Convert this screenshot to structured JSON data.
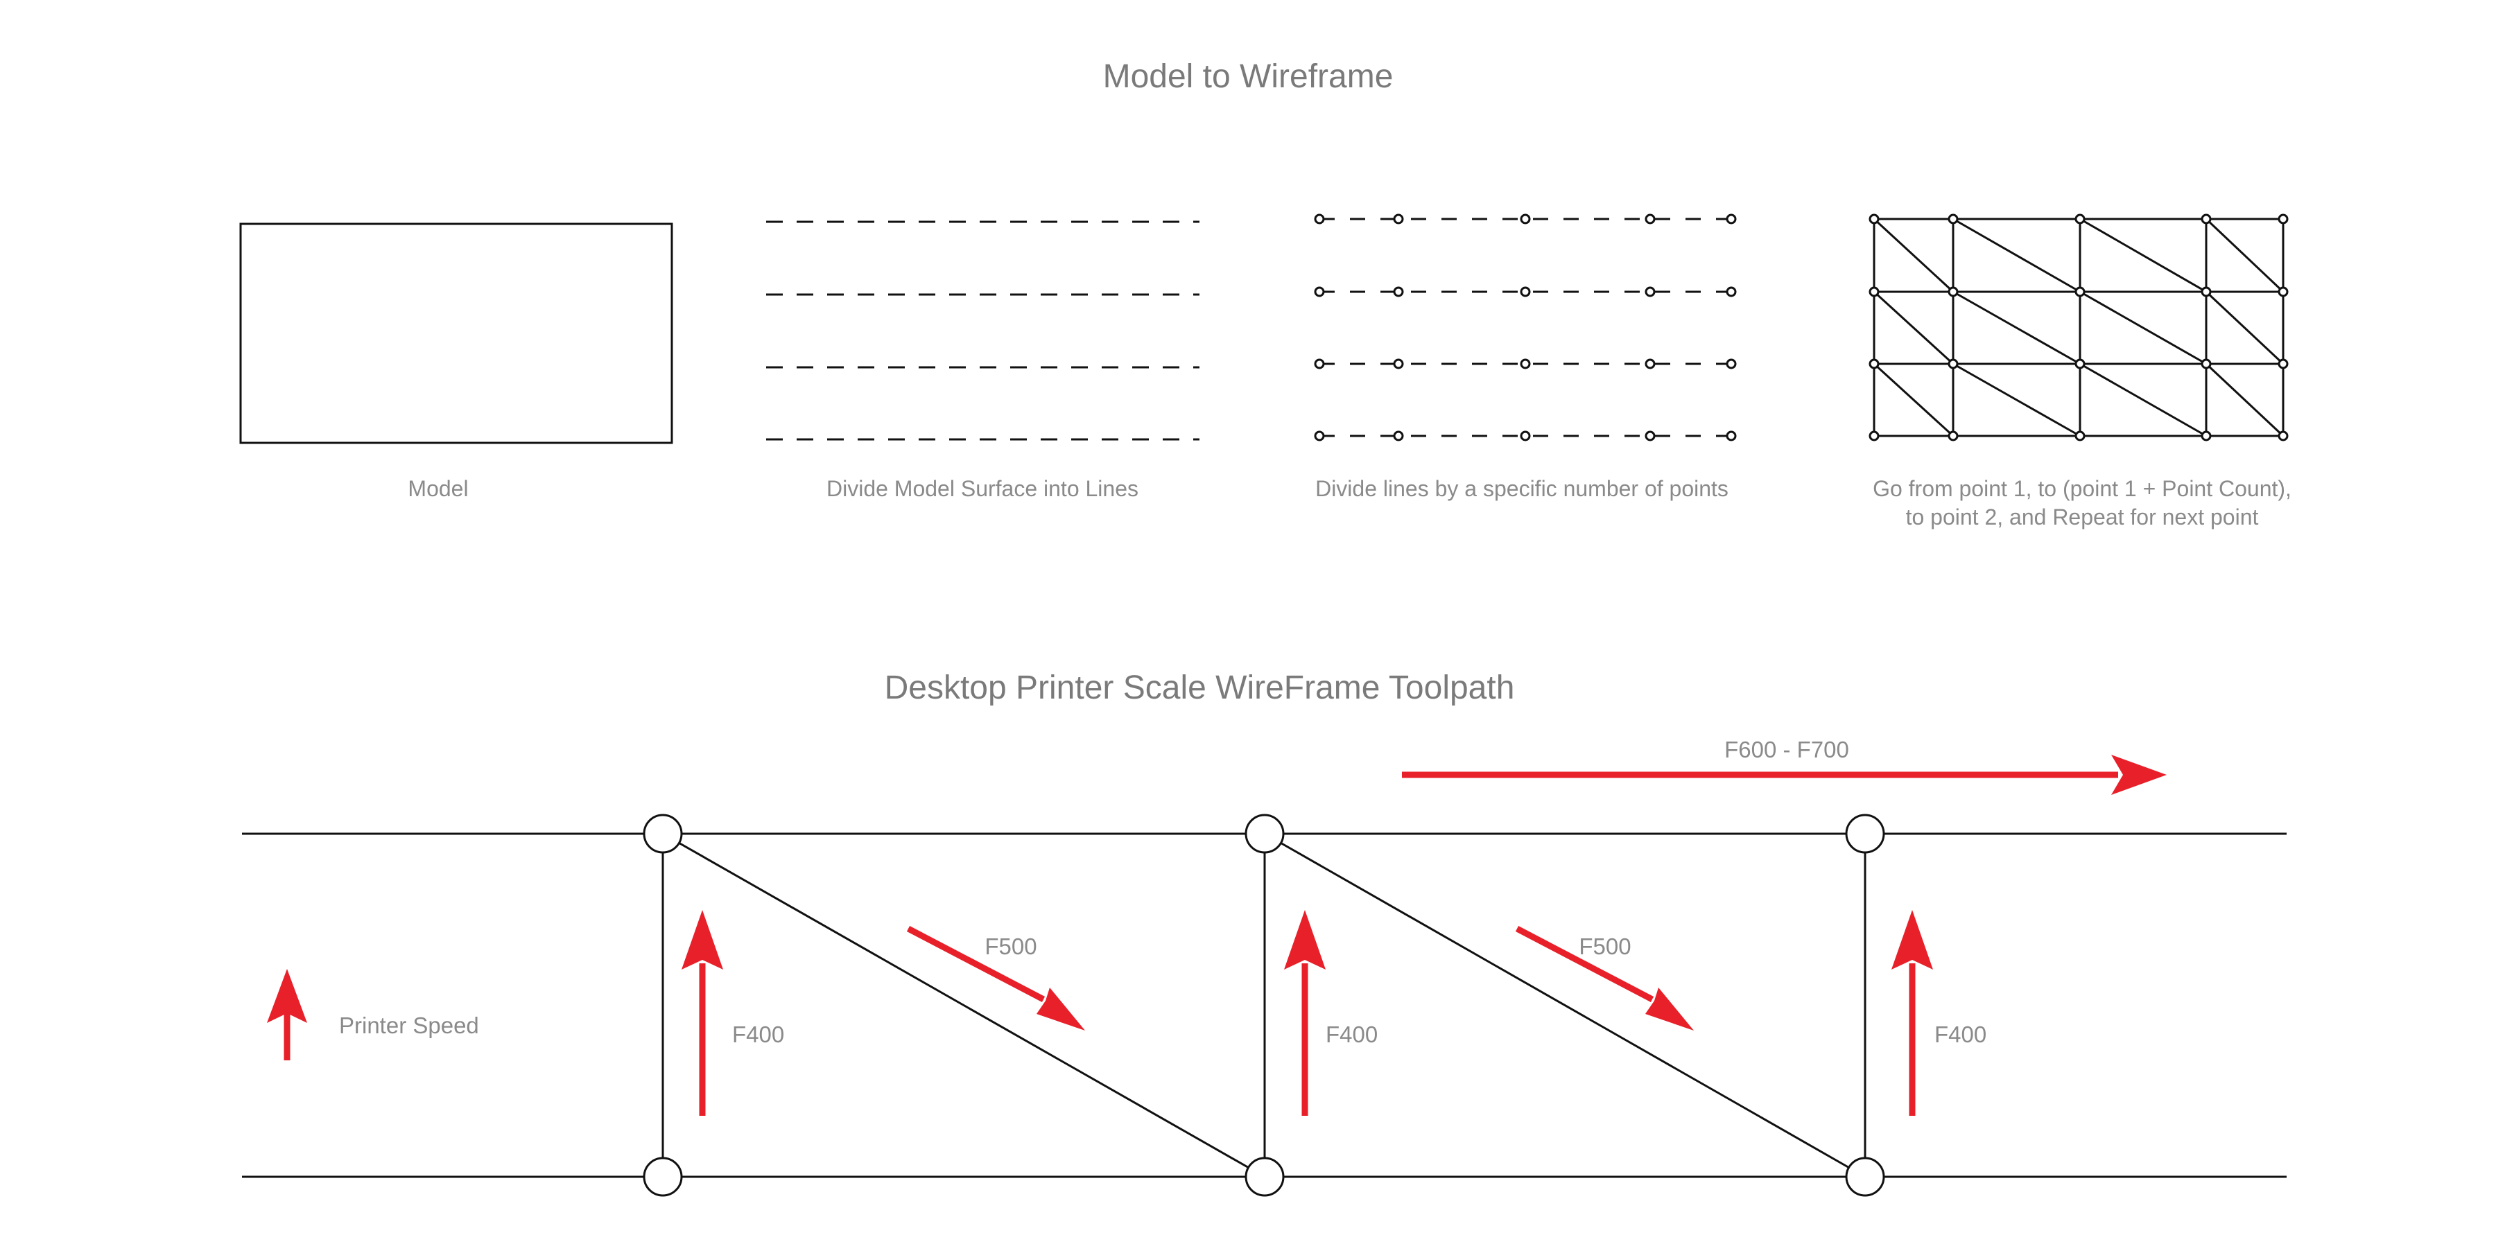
{
  "section1": {
    "title": "Model to Wireframe",
    "panels": [
      {
        "caption_lines": [
          "Model"
        ]
      },
      {
        "caption_lines": [
          "Divide Model Surface into Lines"
        ]
      },
      {
        "caption_lines": [
          "Divide lines by a specific number of points"
        ]
      },
      {
        "caption_lines": [
          "Go from point 1, to (point 1 + Point Count),",
          "to point 2, and Repeat for next point"
        ]
      }
    ]
  },
  "section2": {
    "title": "Desktop Printer Scale WireFrame Toolpath",
    "legend": "Printer Speed",
    "top_speed": "F600 - F700",
    "vertical_speed": "F400",
    "diagonal_speed": "F500"
  },
  "colors": {
    "arrow": "#e8202a",
    "line": "#111111",
    "text": "#8a8a8a"
  }
}
